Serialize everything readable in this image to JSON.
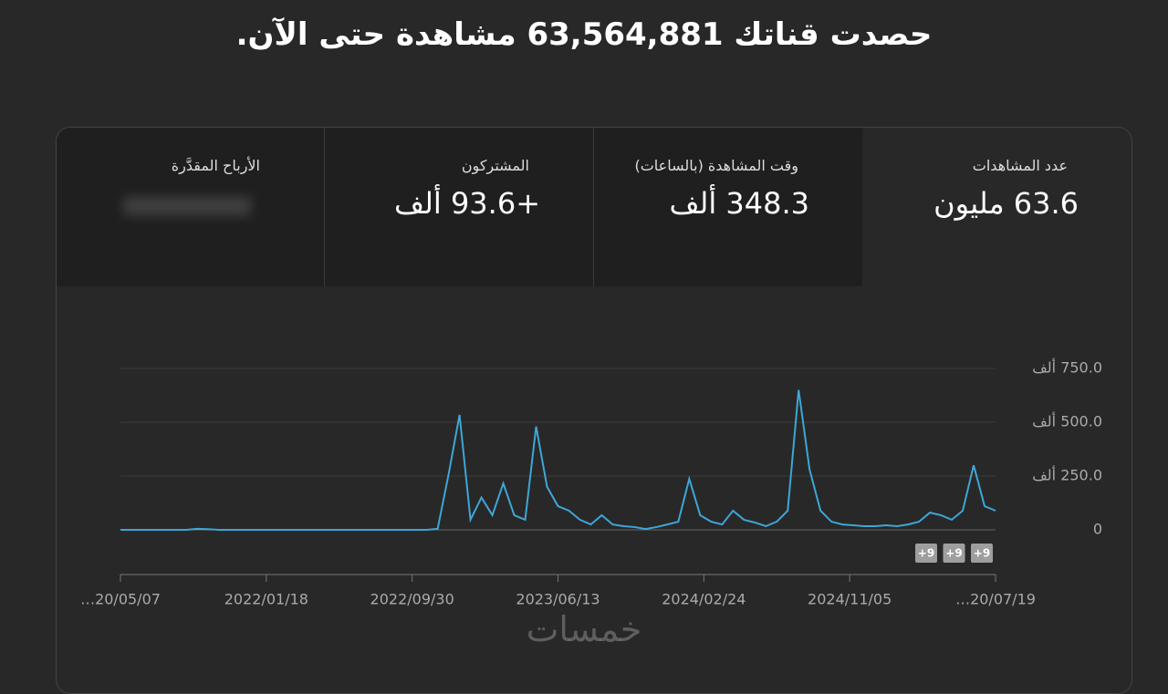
{
  "header": {
    "title": "حصدت قناتك 63,564,881 مشاهدة حتى الآن."
  },
  "cards": [
    {
      "label": "عدد المشاهدات",
      "value": "63.6 مليون"
    },
    {
      "label": "وقت المشاهدة (بالساعات)",
      "value": "348.3 ألف"
    },
    {
      "label": "المشتركون",
      "value": "+93.6 ألف"
    },
    {
      "label": "الأرباح المقدَّرة"
    }
  ],
  "chart_data": {
    "type": "line",
    "color": "#3ea6d6",
    "values": [
      0,
      0,
      0,
      0,
      0,
      0,
      0,
      5,
      3,
      0,
      0,
      0,
      0,
      0,
      0,
      0,
      0,
      0,
      0,
      0,
      0,
      0,
      0,
      0,
      0,
      0,
      0,
      0,
      0,
      5,
      258,
      534,
      47,
      150,
      68,
      216,
      68,
      47,
      480,
      200,
      110,
      89,
      47,
      25,
      68,
      25,
      17,
      13,
      4,
      13,
      25,
      38,
      237,
      68,
      38,
      25,
      89,
      47,
      34,
      17,
      38,
      89,
      650,
      280,
      89,
      38,
      25,
      21,
      17,
      17,
      21,
      17,
      25,
      38,
      80,
      68,
      47,
      89,
      300,
      110,
      89
    ],
    "ylim": [
      0,
      750
    ],
    "yticks": [
      0,
      {
        "value": 250,
        "label": "250.0 ألف"
      },
      {
        "value": 500,
        "label": "500.0 ألف"
      },
      {
        "value": 750,
        "label": "750.0 ألف"
      }
    ],
    "xticks": [
      "…20/05/07",
      "2022/01/18",
      "2022/09/30",
      "2023/06/13",
      "2024/02/24",
      "2024/11/05",
      "…20/07/19"
    ],
    "grid": true,
    "annotations": [
      "+9",
      "+9",
      "+9"
    ]
  },
  "watermark": "خمسات"
}
